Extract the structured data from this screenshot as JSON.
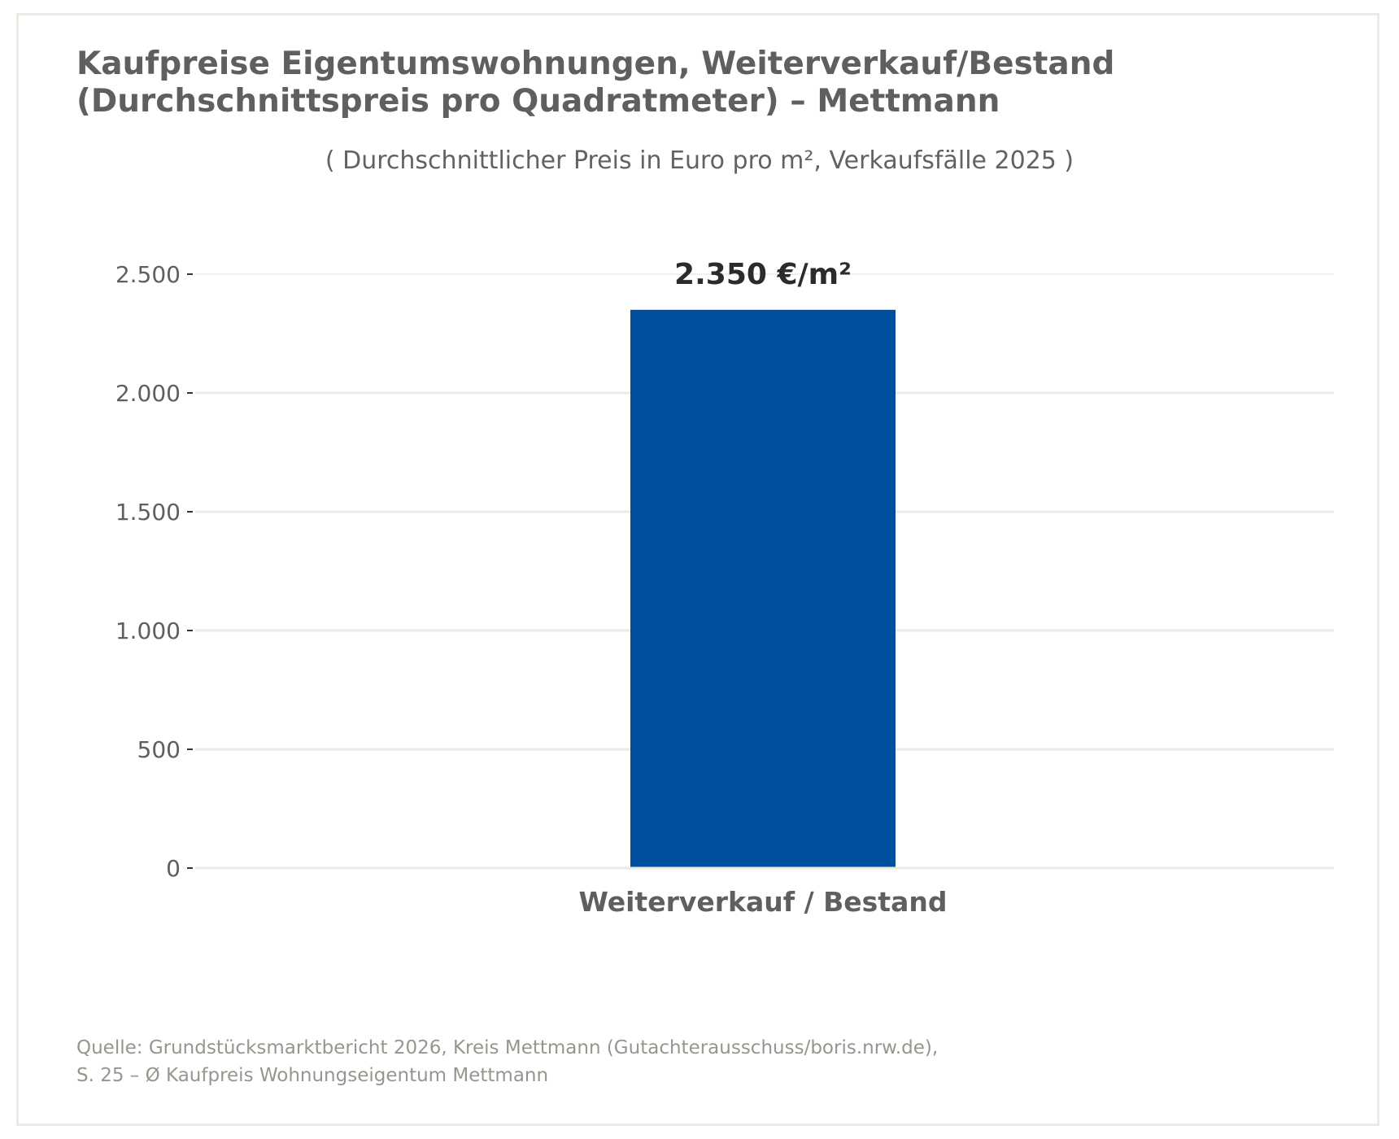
{
  "title_lines": [
    "Kaufpreise Eigentumswohnungen, Weiterverkauf/Bestand",
    "(Durchschnittspreis pro Quadratmeter) – Mettmann"
  ],
  "subtitle": "( Durchschnittlicher Preis in Euro pro m², Verkaufsfälle 2025 )",
  "source_lines": [
    "Quelle: Grundstücksmarktbericht 2026, Kreis Mettmann (Gutachterausschuss/boris.nrw.de),",
    "S. 25 – Ø Kaufpreis Wohnungseigentum Mettmann"
  ],
  "colors": {
    "bar": "#004f9f",
    "grid": "#ebeae4",
    "text": "#5f5f5f",
    "value_label": "#2b2b2b",
    "source": "#96968f"
  },
  "chart_data": {
    "type": "bar",
    "title": "Kaufpreise Eigentumswohnungen, Weiterverkauf/Bestand (Durchschnittspreis pro Quadratmeter) – Mettmann",
    "subtitle": "( Durchschnittlicher Preis in Euro pro m², Verkaufsfälle 2025 )",
    "categories": [
      "Weiterverkauf / Bestand"
    ],
    "values": [
      2350
    ],
    "data_labels": [
      "2.350 €/m²"
    ],
    "xlabel": "",
    "ylabel": "",
    "ylim": [
      0,
      2500
    ],
    "yticks": [
      0,
      500,
      1000,
      1500,
      2000,
      2500
    ],
    "ytick_labels": [
      "0",
      "500",
      "1.000",
      "1.500",
      "2.000",
      "2.500"
    ],
    "grid": true,
    "legend": "none"
  }
}
